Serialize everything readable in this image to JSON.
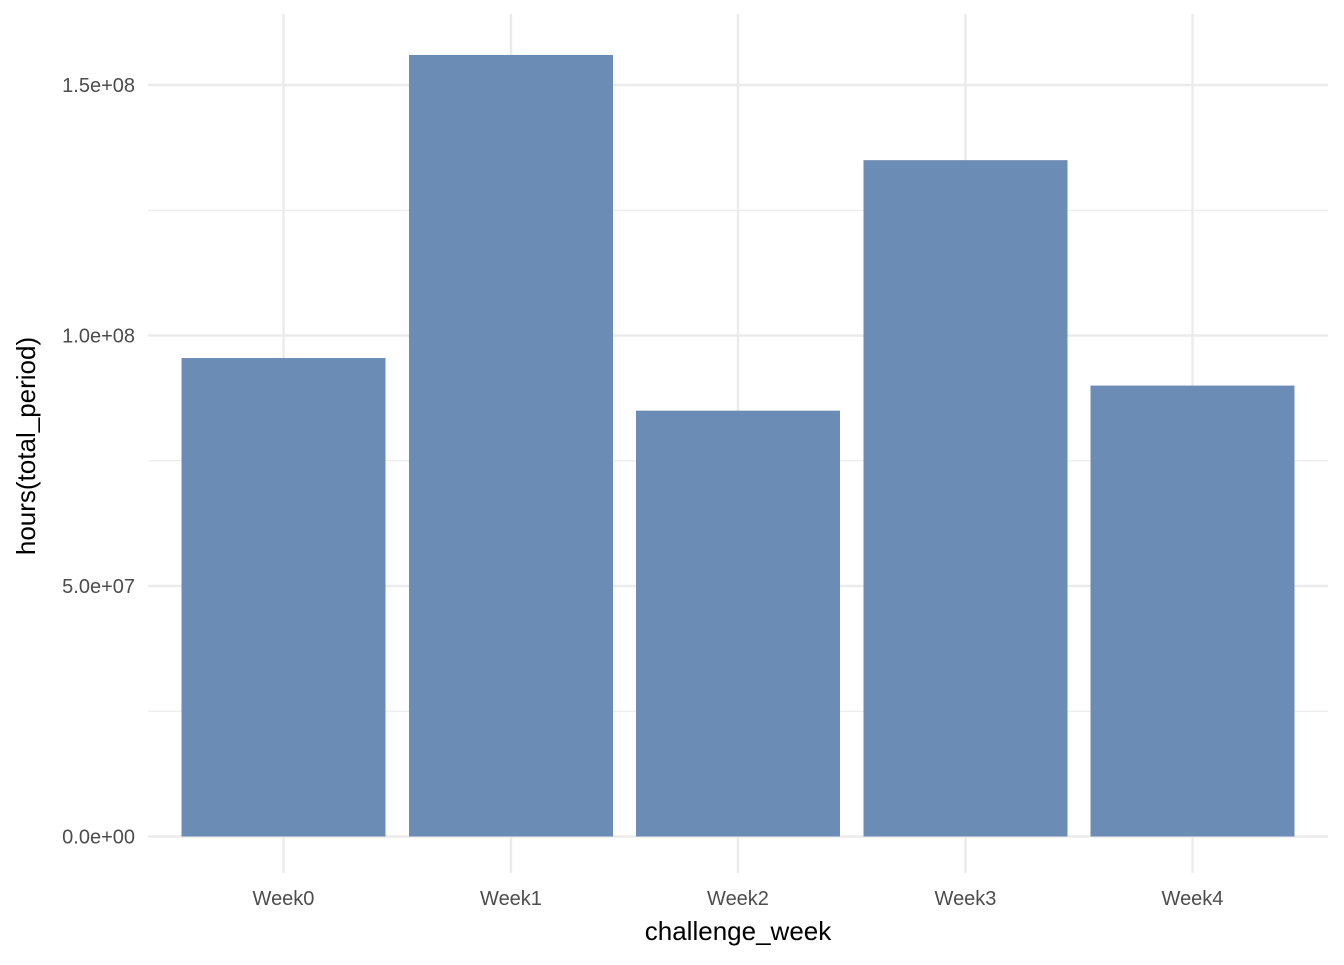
{
  "chart_data": {
    "type": "bar",
    "categories": [
      "Week0",
      "Week1",
      "Week2",
      "Week3",
      "Week4"
    ],
    "values": [
      95500000,
      156000000,
      85000000,
      135000000,
      90000000
    ],
    "xlabel": "challenge_week",
    "ylabel": "hours(total_period)",
    "ylim": [
      0,
      160000000
    ],
    "yticks": [
      0,
      50000000,
      100000000,
      150000000
    ],
    "ytick_labels": [
      "0.0e+00",
      "5.0e+07",
      "1.0e+08",
      "1.5e+08"
    ],
    "grid": true,
    "legend": "none",
    "bar_color": "#6b8cb4",
    "grid_color": "#ebebeb"
  }
}
